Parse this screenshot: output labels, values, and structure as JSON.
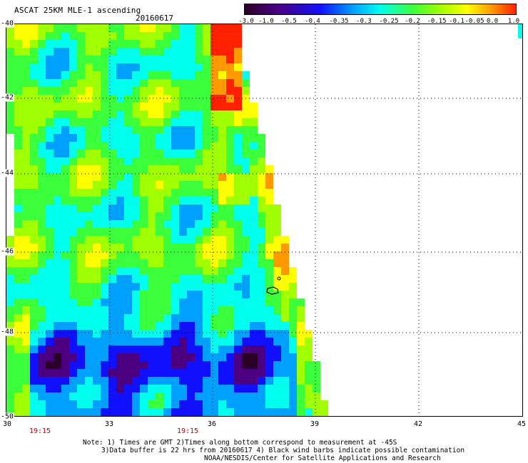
{
  "header": {
    "title": "ASCAT 25KM MLE-1 ascending",
    "date": "20160617"
  },
  "colorbar": {
    "tick_labels": [
      "-3.0",
      "-1.0",
      "-0.5",
      "-0.4",
      "-0.35",
      "-0.3",
      "-0.25",
      "-0.2",
      "-0.15",
      "-0.1",
      "-0.05",
      "0.0",
      "1.0"
    ],
    "colors": [
      "#2b0026",
      "#4b0082",
      "#1010ff",
      "#00a0ff",
      "#00ffee",
      "#3cff3c",
      "#a0ff00",
      "#ffff00",
      "#ff9900",
      "#ff2000"
    ]
  },
  "axes": {
    "lat_labels": [
      "-40",
      "-42",
      "-44",
      "-46",
      "-48",
      "-50"
    ],
    "lon_labels": [
      "30",
      "33",
      "36",
      "39",
      "42",
      "45"
    ]
  },
  "times": [
    "19:15",
    "19:15"
  ],
  "notes": [
    "Note: 1) Times are GMT 2)Times along bottom correspond to measurement at -45S",
    "3)Data buffer is 22 hrs from 20160617 4) Black wind barbs indicate possible contamination",
    "NOAA/NESDIS/Center for Satellite Applications and Research"
  ]
}
